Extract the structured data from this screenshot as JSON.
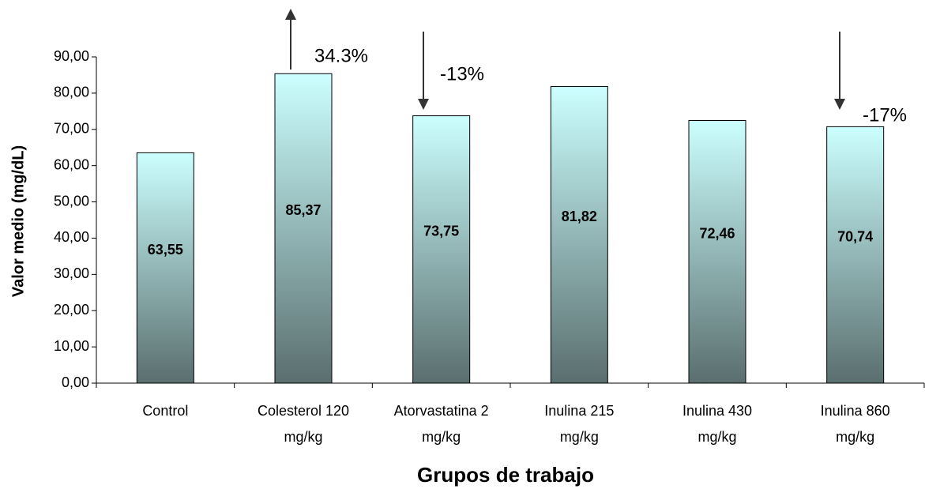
{
  "chart_data": {
    "type": "bar",
    "xlabel": "Grupos de trabajo",
    "ylabel": "Valor medio (mg/dL)",
    "categories": [
      "Control",
      "Colesterol 120 mg/kg",
      "Atorvastatina 2 mg/kg",
      "Inulina 215 mg/kg",
      "Inulina 430 mg/kg",
      "Inulina 860 mg/kg"
    ],
    "values": [
      63.55,
      85.37,
      73.75,
      81.82,
      72.46,
      70.74
    ],
    "value_labels": [
      "63,55",
      "85,37",
      "73,75",
      "81,82",
      "72,46",
      "70,74"
    ],
    "color": [
      "#ccffff",
      "#5a6e6e"
    ],
    "ylim": [
      0,
      90
    ],
    "yticks": [
      {
        "value": 0,
        "label": "0,00"
      },
      {
        "value": 10,
        "label": "10,00"
      },
      {
        "value": 20,
        "label": "20,00"
      },
      {
        "value": 30,
        "label": "30,00"
      },
      {
        "value": 40,
        "label": "40,00"
      },
      {
        "value": 50,
        "label": "50,00"
      },
      {
        "value": 60,
        "label": "60,00"
      },
      {
        "value": 70,
        "label": "70,00"
      },
      {
        "value": 80,
        "label": "80,00"
      },
      {
        "value": 90,
        "label": "90,00"
      }
    ],
    "annotations": [
      "34.3%",
      "-13%",
      "-17%"
    ]
  }
}
